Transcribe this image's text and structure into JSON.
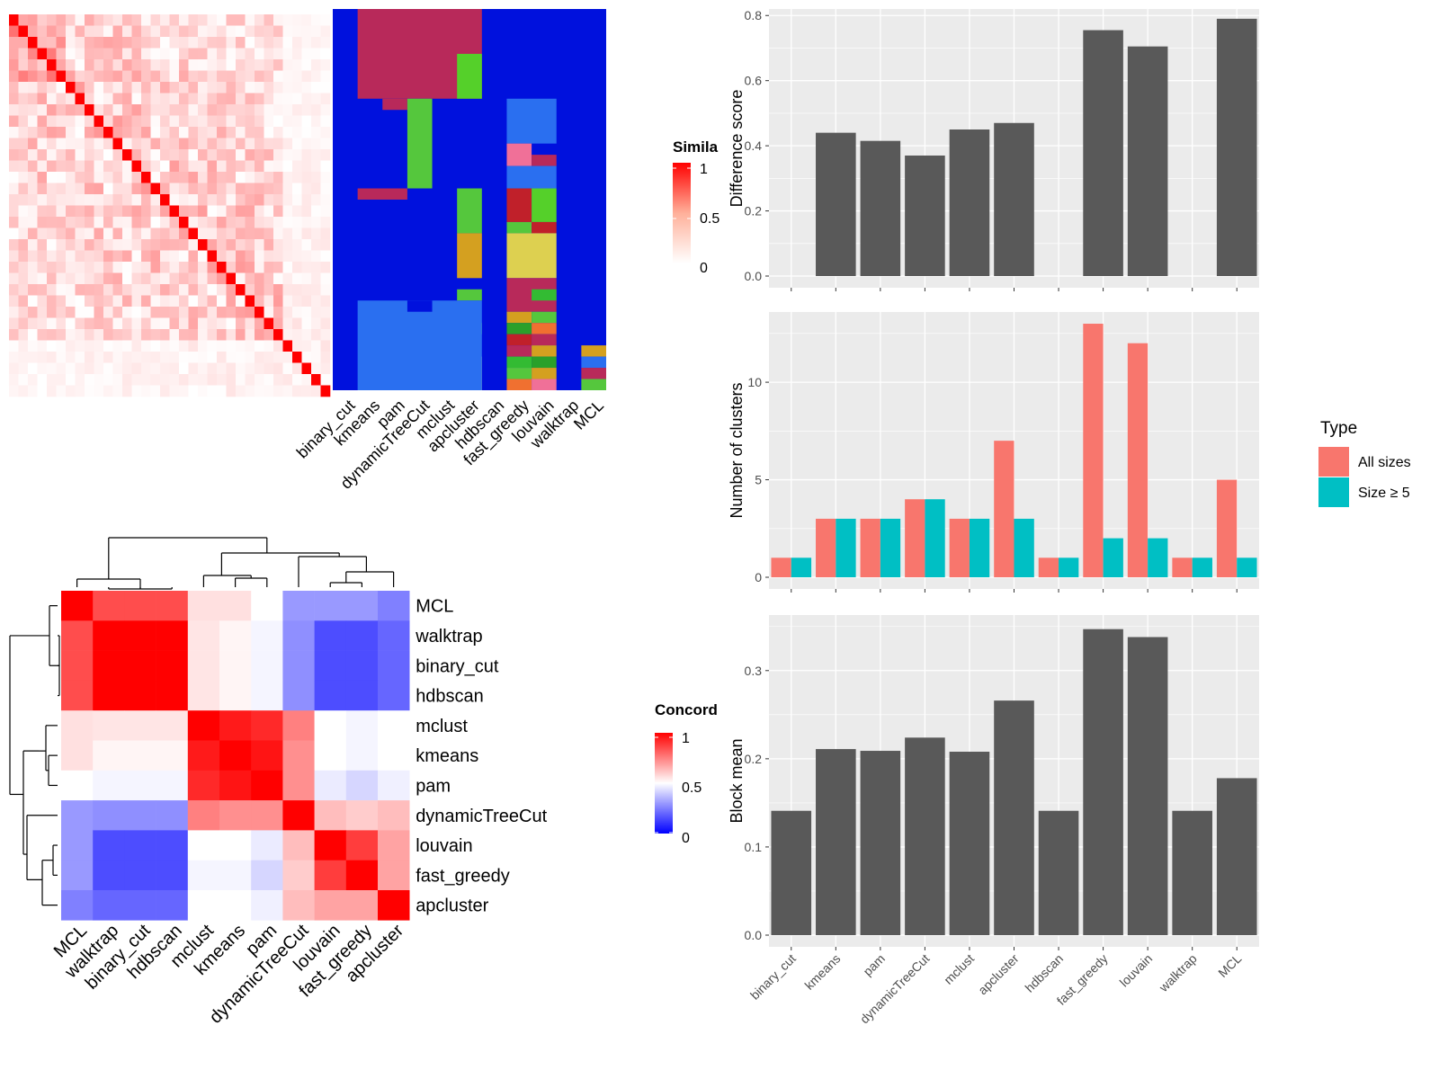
{
  "colors": {
    "bar_dark": "#595959",
    "panel_bg": "#ebebeb",
    "grid": "#ffffff",
    "all_sizes": "#F8766D",
    "size_ge_5": "#00BFC4",
    "legend_red": "#FF0000",
    "legend_blue": "#0000FF"
  },
  "similarity_legend": {
    "title": "Simila",
    "ticks": [
      "1",
      "0.5",
      "0"
    ]
  },
  "concordance_legend": {
    "title": "Concord",
    "ticks": [
      "1",
      "0.5",
      "0"
    ]
  },
  "heatmap_top": {
    "column_labels": [
      "binary_cut",
      "kmeans",
      "pam",
      "dynamicTreeCut",
      "mclust",
      "apcluster",
      "hdbscan",
      "fast_greedy",
      "louvain",
      "walktrap",
      "MCL"
    ]
  },
  "concordance_heatmap": {
    "row_labels": [
      "MCL",
      "walktrap",
      "binary_cut",
      "hdbscan",
      "mclust",
      "kmeans",
      "pam",
      "dynamicTreeCut",
      "louvain",
      "fast_greedy",
      "apcluster"
    ],
    "column_labels": [
      "MCL",
      "walktrap",
      "binary_cut",
      "hdbscan",
      "mclust",
      "kmeans",
      "pam",
      "dynamicTreeCut",
      "louvain",
      "fast_greedy",
      "apcluster"
    ],
    "values": [
      [
        1.0,
        0.85,
        0.85,
        0.85,
        0.56,
        0.56,
        0.5,
        0.3,
        0.3,
        0.3,
        0.25
      ],
      [
        0.85,
        1.0,
        1.0,
        1.0,
        0.55,
        0.52,
        0.48,
        0.28,
        0.15,
        0.15,
        0.2
      ],
      [
        0.85,
        1.0,
        1.0,
        1.0,
        0.55,
        0.52,
        0.48,
        0.28,
        0.15,
        0.15,
        0.2
      ],
      [
        0.85,
        1.0,
        1.0,
        1.0,
        0.55,
        0.52,
        0.48,
        0.28,
        0.15,
        0.15,
        0.2
      ],
      [
        0.56,
        0.55,
        0.55,
        0.55,
        1.0,
        0.95,
        0.92,
        0.75,
        0.5,
        0.48,
        0.5
      ],
      [
        0.56,
        0.52,
        0.52,
        0.52,
        0.95,
        1.0,
        0.96,
        0.72,
        0.5,
        0.48,
        0.5
      ],
      [
        0.5,
        0.48,
        0.48,
        0.48,
        0.92,
        0.96,
        1.0,
        0.72,
        0.46,
        0.42,
        0.47
      ],
      [
        0.3,
        0.28,
        0.28,
        0.28,
        0.75,
        0.72,
        0.72,
        1.0,
        0.63,
        0.6,
        0.63
      ],
      [
        0.3,
        0.15,
        0.15,
        0.15,
        0.5,
        0.5,
        0.46,
        0.63,
        1.0,
        0.88,
        0.68
      ],
      [
        0.3,
        0.15,
        0.15,
        0.15,
        0.48,
        0.48,
        0.42,
        0.6,
        0.88,
        1.0,
        0.68
      ],
      [
        0.25,
        0.2,
        0.2,
        0.2,
        0.5,
        0.5,
        0.47,
        0.63,
        0.68,
        0.68,
        1.0
      ]
    ]
  },
  "chart_data": [
    {
      "type": "bar",
      "categories": [
        "binary_cut",
        "kmeans",
        "pam",
        "dynamicTreeCut",
        "mclust",
        "apcluster",
        "hdbscan",
        "fast_greedy",
        "louvain",
        "walktrap",
        "MCL"
      ],
      "values": [
        0,
        0.44,
        0.415,
        0.37,
        0.45,
        0.47,
        0,
        0.755,
        0.705,
        0,
        0.79
      ],
      "ylabel": "Difference score",
      "ylim": [
        0,
        0.82
      ],
      "yticks": [
        "0.0",
        "0.2",
        "0.4",
        "0.6",
        "0.8"
      ],
      "ytick_values": [
        0,
        0.2,
        0.4,
        0.6,
        0.8
      ],
      "grid": true
    },
    {
      "type": "bar",
      "categories": [
        "binary_cut",
        "kmeans",
        "pam",
        "dynamicTreeCut",
        "mclust",
        "apcluster",
        "hdbscan",
        "fast_greedy",
        "louvain",
        "walktrap",
        "MCL"
      ],
      "series": [
        {
          "name": "All sizes",
          "values": [
            1,
            3,
            3,
            4,
            3,
            7,
            1,
            13,
            12,
            1,
            5
          ]
        },
        {
          "name": "Size ≥ 5",
          "values": [
            1,
            3,
            3,
            4,
            3,
            3,
            1,
            2,
            2,
            1,
            1
          ]
        }
      ],
      "ylabel": "Number of clusters",
      "ylim": [
        0,
        13.6
      ],
      "yticks": [
        "0",
        "5",
        "10"
      ],
      "ytick_values": [
        0,
        5,
        10
      ],
      "legend": {
        "title": "Type",
        "position": "right"
      },
      "grid": true
    },
    {
      "type": "bar",
      "categories": [
        "binary_cut",
        "kmeans",
        "pam",
        "dynamicTreeCut",
        "mclust",
        "apcluster",
        "hdbscan",
        "fast_greedy",
        "louvain",
        "walktrap",
        "MCL"
      ],
      "values": [
        0.141,
        0.211,
        0.209,
        0.224,
        0.208,
        0.266,
        0.141,
        0.347,
        0.338,
        0.141,
        0.178
      ],
      "ylabel": "Block mean",
      "ylim": [
        0,
        0.363
      ],
      "yticks": [
        "0.0",
        "0.1",
        "0.2",
        "0.3"
      ],
      "ytick_values": [
        0,
        0.1,
        0.2,
        0.3
      ],
      "grid": true
    }
  ]
}
